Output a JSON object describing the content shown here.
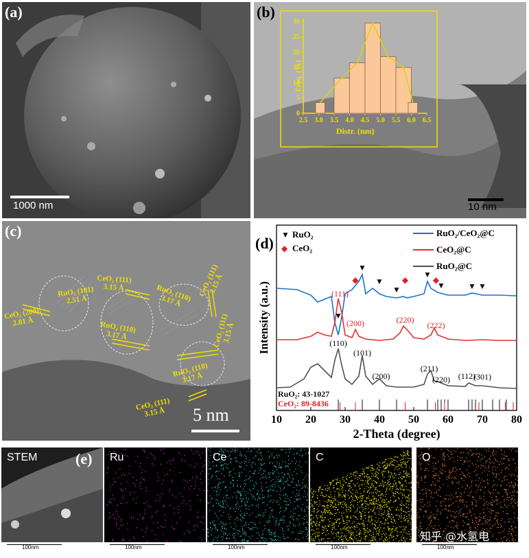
{
  "panels": {
    "a": {
      "label": "(a)",
      "scale": "1000 nm"
    },
    "b": {
      "label": "(b)",
      "scale": "10 nm"
    },
    "c": {
      "label": "(c)",
      "scale": "5 nm",
      "lattice": [
        {
          "text": "RuO₂ (101)",
          "d": "2.51 Å"
        },
        {
          "text": "CeO₂ (200)",
          "d": "2.81 Å"
        },
        {
          "text": "CeO₂ (111)",
          "d": "3.15 Å"
        },
        {
          "text": "RuO₂ (110)",
          "d": "3.17 Å"
        },
        {
          "text": "RuO₂ (110)",
          "d": "3.17 Å"
        },
        {
          "text": "CeO₂ (111)",
          "d": "3.15 Å"
        },
        {
          "text": "CeO₂ (111)",
          "d": "3.15 Å"
        },
        {
          "text": "RuO₂ (110)",
          "d": "3.17 Å"
        },
        {
          "text": "CeO₂ (111)",
          "d": "3.15 Å"
        }
      ]
    },
    "d": {
      "label": "(d)"
    },
    "e": {
      "label": "(e)"
    }
  },
  "maps": [
    {
      "label": "STEM",
      "color": "#9a9a9a",
      "scale": "100nm"
    },
    {
      "label": "Ru",
      "color": "#d12ad6",
      "scale": "100nm"
    },
    {
      "label": "Ce",
      "color": "#2fb8b0",
      "scale": "100nm"
    },
    {
      "label": "C",
      "color": "#d8d400",
      "scale": "100nm"
    },
    {
      "label": "O",
      "color": "#d2772a",
      "scale": "100nm"
    }
  ],
  "watermark": "知乎 @水氢电",
  "chart_data": [
    {
      "type": "bar",
      "title": "",
      "xlabel": "Distr. (nm)",
      "ylabel": "Freq. (%)",
      "x_ticks": [
        "2.5",
        "3.0",
        "3.5",
        "4.0",
        "4.5",
        "5.0",
        "5.5",
        "6.0",
        "6.5"
      ],
      "y_ticks": [
        "0",
        "5",
        "10",
        "15",
        "20",
        "25",
        "30"
      ],
      "ylim": [
        0,
        31
      ],
      "xlim": [
        2.5,
        6.5
      ],
      "categories": [
        "3.0",
        "3.75",
        "4.25",
        "4.75",
        "5.25",
        "5.75",
        "6.0"
      ],
      "bins": [
        [
          2.9,
          3.2
        ],
        [
          3.5,
          4.0
        ],
        [
          4.0,
          4.5
        ],
        [
          4.5,
          5.0
        ],
        [
          5.0,
          5.5
        ],
        [
          5.5,
          6.0
        ],
        [
          5.9,
          6.2
        ]
      ],
      "values": [
        3.5,
        11.5,
        16.5,
        29.5,
        18.5,
        15,
        3.5
      ],
      "colors": {
        "bar": "#fbc89a",
        "edge": "#8a6a40",
        "axis": "#f0e000",
        "curve": "#e2d000"
      }
    },
    {
      "type": "line",
      "xlabel": "2-Theta (degree)",
      "ylabel": "Intensity (a.u.)",
      "xlim": [
        10,
        80
      ],
      "x_ticks": [
        "10",
        "20",
        "30",
        "40",
        "50",
        "60",
        "70",
        "80"
      ],
      "series": [
        {
          "name": "RuO₂/CeO₂@C",
          "color": "#1f6fd0",
          "x": [
            10,
            16,
            20,
            22,
            24,
            26,
            27,
            28,
            29,
            30,
            32,
            34,
            35,
            36,
            38,
            40,
            42,
            45,
            47,
            48,
            50,
            53,
            54,
            55,
            57,
            60,
            65,
            67,
            70,
            75,
            80
          ],
          "y": [
            420,
            422,
            430,
            440,
            436,
            432,
            470,
            488,
            462,
            428,
            422,
            410,
            400,
            428,
            420,
            428,
            432,
            434,
            432,
            434,
            432,
            428,
            410,
            420,
            426,
            430,
            430,
            427,
            430,
            430,
            431
          ]
        },
        {
          "name": "CeO₂@C",
          "color": "#e03030",
          "x": [
            10,
            16,
            20,
            22,
            24,
            26,
            27,
            28,
            29,
            30,
            32,
            33,
            34,
            36,
            40,
            44,
            46,
            47,
            48,
            50,
            53,
            55,
            56,
            57,
            60,
            65,
            70,
            75,
            80
          ],
          "y": [
            495,
            495,
            490,
            484,
            488,
            490,
            470,
            435,
            455,
            488,
            492,
            480,
            490,
            494,
            496,
            494,
            485,
            475,
            480,
            492,
            494,
            488,
            478,
            488,
            494,
            496,
            495,
            496,
            496
          ]
        },
        {
          "name": "RuO₂@C",
          "color": "#505050",
          "x": [
            10,
            14,
            18,
            20,
            22,
            24,
            26,
            27,
            28,
            29,
            30,
            32,
            34,
            35,
            36,
            38,
            40,
            42,
            45,
            50,
            53,
            54,
            55,
            56,
            57,
            60,
            65,
            66,
            67,
            68,
            70,
            75,
            80
          ],
          "y": [
            565,
            564,
            552,
            535,
            530,
            540,
            550,
            525,
            508,
            532,
            552,
            560,
            548,
            518,
            548,
            560,
            552,
            562,
            564,
            564,
            560,
            545,
            540,
            555,
            556,
            562,
            563,
            558,
            560,
            562,
            562,
            565,
            566
          ]
        }
      ],
      "markers": {
        "RuO2": {
          "symbol": "▼",
          "color": "#111111",
          "x": [
            28,
            35,
            40,
            45,
            54,
            58,
            67,
            70
          ]
        },
        "CeO2": {
          "symbol": "◆",
          "color": "#e02020",
          "x": [
            33,
            47.5,
            56.5
          ]
        }
      },
      "peak_labels": {
        "CeO2@C": [
          "(111)",
          "(200)",
          "(220)",
          "(222)"
        ],
        "RuO2@C": [
          "(110)",
          "(101)",
          "(200)",
          "(211)",
          "(220)",
          "(112)",
          "(301)"
        ]
      },
      "references": [
        {
          "label": "RuO₂:  43-1027",
          "color": "#111111",
          "x": [
            28,
            35,
            40,
            45,
            54,
            57,
            58,
            59,
            60,
            66,
            67,
            68,
            70,
            73,
            75,
            77
          ]
        },
        {
          "label": "CeO₂:  89-8436",
          "color": "#e02020",
          "x": [
            28.5,
            33,
            47.5,
            56.3,
            59,
            69,
            76.7,
            79
          ]
        }
      ],
      "legend_labels": [
        "RuO₂/CeO₂@C",
        "CeO₂@C",
        "RuO₂@C"
      ],
      "marker_legend": [
        "RuO₂",
        "CeO₂"
      ]
    }
  ]
}
